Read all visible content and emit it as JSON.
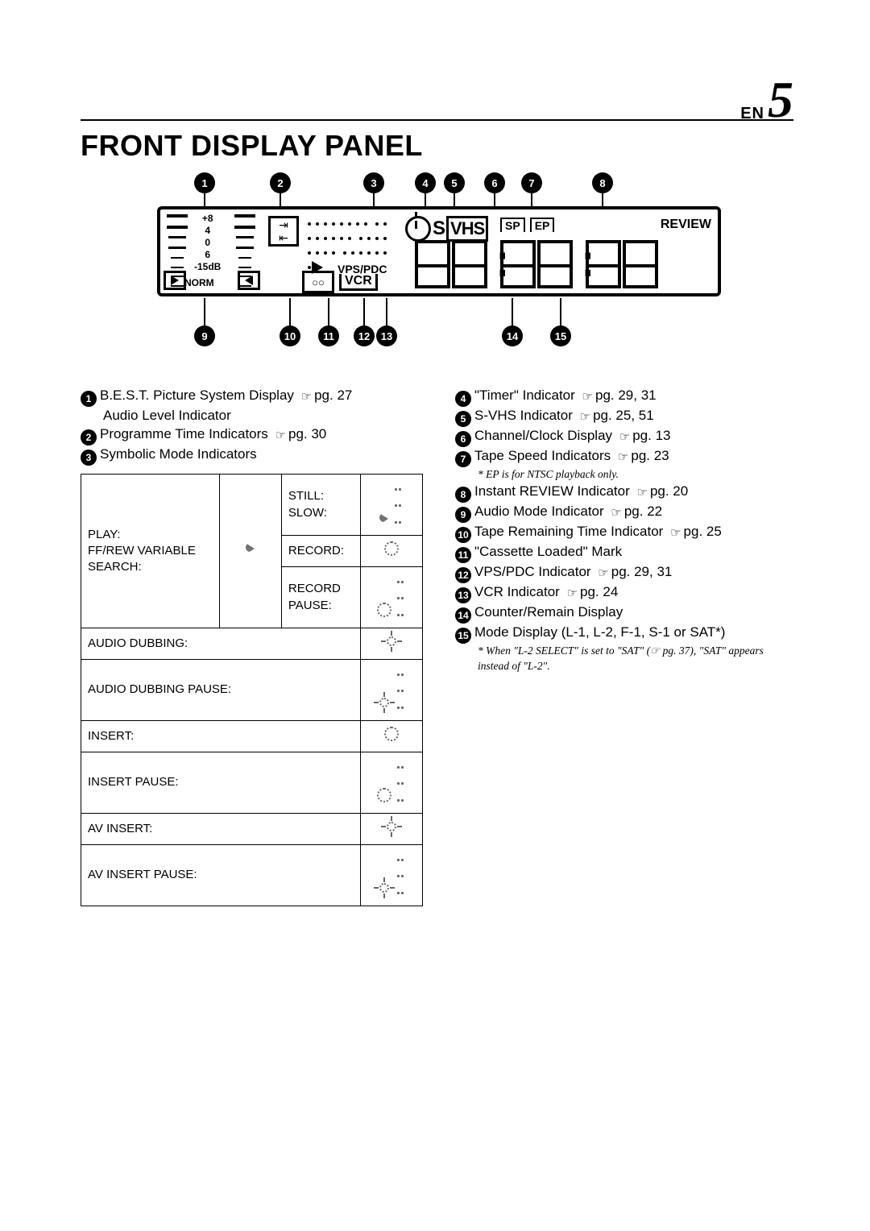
{
  "page_label": "EN",
  "page_number": "5",
  "title": "FRONT DISPLAY PANEL",
  "panel": {
    "scale": [
      "+8",
      "4",
      "0",
      "6",
      "-15dB"
    ],
    "norm": "NORM",
    "vps": "VPS/PDC",
    "vcr": "VCR",
    "svhs_S": "S",
    "svhs_box": "VHS",
    "sp": "SP",
    "ep": "EP",
    "review": "REVIEW",
    "callouts_top": [
      "1",
      "2",
      "3",
      "4",
      "5",
      "6",
      "7",
      "8"
    ],
    "callouts_bottom": [
      "9",
      "10",
      "11",
      "12",
      "13",
      "14",
      "15"
    ],
    "callouts_top_x": [
      46,
      140,
      256,
      320,
      356,
      406,
      452,
      540
    ],
    "callouts_bottom_x": [
      46,
      152,
      200,
      244,
      272,
      428,
      488
    ]
  },
  "col_left": [
    {
      "n": "1",
      "text": "B.E.S.T. Picture System Display",
      "ref": "pg. 27",
      "sub": "Audio Level Indicator"
    },
    {
      "n": "2",
      "text": "Programme Time Indicators",
      "ref": "pg. 30"
    },
    {
      "n": "3",
      "text": "Symbolic Mode Indicators"
    }
  ],
  "table": {
    "play_block": {
      "label": "PLAY:\nFF/REW VARIABLE\nSEARCH:",
      "sub": [
        {
          "l": "STILL:\nSLOW:",
          "ic": "tri-pause"
        },
        {
          "l": "RECORD:",
          "ic": "circ"
        },
        {
          "l": "RECORD\nPAUSE:",
          "ic": "circ-pause"
        }
      ]
    },
    "rows": [
      {
        "l": "AUDIO DUBBING:",
        "ic": "star"
      },
      {
        "l": "AUDIO DUBBING PAUSE:",
        "ic": "star-pause"
      },
      {
        "l": "INSERT:",
        "ic": "dcirc"
      },
      {
        "l": "INSERT PAUSE:",
        "ic": "dcirc-pause"
      },
      {
        "l": "AV INSERT:",
        "ic": "star2"
      },
      {
        "l": "AV INSERT PAUSE:",
        "ic": "star2-pause"
      }
    ]
  },
  "col_right": [
    {
      "n": "4",
      "text": "\"Timer\" Indicator",
      "ref": "pg. 29, 31"
    },
    {
      "n": "5",
      "text": "S-VHS Indicator",
      "ref": "pg. 25, 51"
    },
    {
      "n": "6",
      "text": "Channel/Clock Display",
      "ref": "pg. 13"
    },
    {
      "n": "7",
      "text": "Tape Speed Indicators",
      "ref": "pg. 23",
      "foot": "* EP is for NTSC playback only."
    },
    {
      "n": "8",
      "text": "Instant REVIEW Indicator",
      "ref": "pg. 20"
    },
    {
      "n": "9",
      "text": "Audio Mode Indicator",
      "ref": "pg. 22"
    },
    {
      "n": "10",
      "text": "Tape Remaining Time Indicator",
      "ref": "pg. 25"
    },
    {
      "n": "11",
      "text": "\"Cassette Loaded\" Mark"
    },
    {
      "n": "12",
      "text": "VPS/PDC Indicator",
      "ref": "pg. 29, 31"
    },
    {
      "n": "13",
      "text": "VCR Indicator",
      "ref": "pg. 24"
    },
    {
      "n": "14",
      "text": "Counter/Remain Display"
    },
    {
      "n": "15",
      "text": "Mode Display (L-1, L-2, F-1, S-1 or SAT*)",
      "foot": "* When \"L-2 SELECT\" is set to \"SAT\" (☞ pg. 37), \"SAT\" appears instead of \"L-2\"."
    }
  ],
  "ref_glyph": "☞"
}
